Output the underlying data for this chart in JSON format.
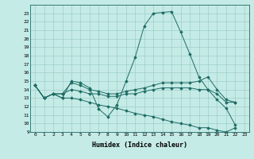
{
  "xlabel": "Humidex (Indice chaleur)",
  "xlim": [
    -0.5,
    23.5
  ],
  "ylim": [
    9,
    24
  ],
  "yticks": [
    9,
    10,
    11,
    12,
    13,
    14,
    15,
    16,
    17,
    18,
    19,
    20,
    21,
    22,
    23
  ],
  "xticks": [
    0,
    1,
    2,
    3,
    4,
    5,
    6,
    7,
    8,
    9,
    10,
    11,
    12,
    13,
    14,
    15,
    16,
    17,
    18,
    19,
    20,
    21,
    22,
    23
  ],
  "bg_color": "#c5ebe6",
  "grid_color": "#9dcec8",
  "line_color": "#1e6b64",
  "lines": [
    [
      14.5,
      13.0,
      13.5,
      13.0,
      15.0,
      14.8,
      14.2,
      11.7,
      10.8,
      12.2,
      15.0,
      17.8,
      21.5,
      23.0,
      23.1,
      23.2,
      20.8,
      18.2,
      15.5,
      14.0,
      12.8,
      11.8,
      9.8
    ],
    [
      14.5,
      13.0,
      13.5,
      13.5,
      14.8,
      14.5,
      14.0,
      13.8,
      13.5,
      13.5,
      13.8,
      14.0,
      14.2,
      14.5,
      14.8,
      14.8,
      14.8,
      14.8,
      15.0,
      15.5,
      14.0,
      12.8,
      12.5
    ],
    [
      14.5,
      13.0,
      13.5,
      13.5,
      14.0,
      13.8,
      13.5,
      13.5,
      13.2,
      13.2,
      13.5,
      13.5,
      13.8,
      14.0,
      14.2,
      14.2,
      14.2,
      14.2,
      14.0,
      14.0,
      13.5,
      12.5,
      12.5
    ],
    [
      14.5,
      13.0,
      13.5,
      13.0,
      13.0,
      12.8,
      12.5,
      12.2,
      12.0,
      11.8,
      11.5,
      11.2,
      11.0,
      10.8,
      10.5,
      10.2,
      10.0,
      9.8,
      9.5,
      9.5,
      9.2,
      9.0,
      9.5
    ]
  ]
}
